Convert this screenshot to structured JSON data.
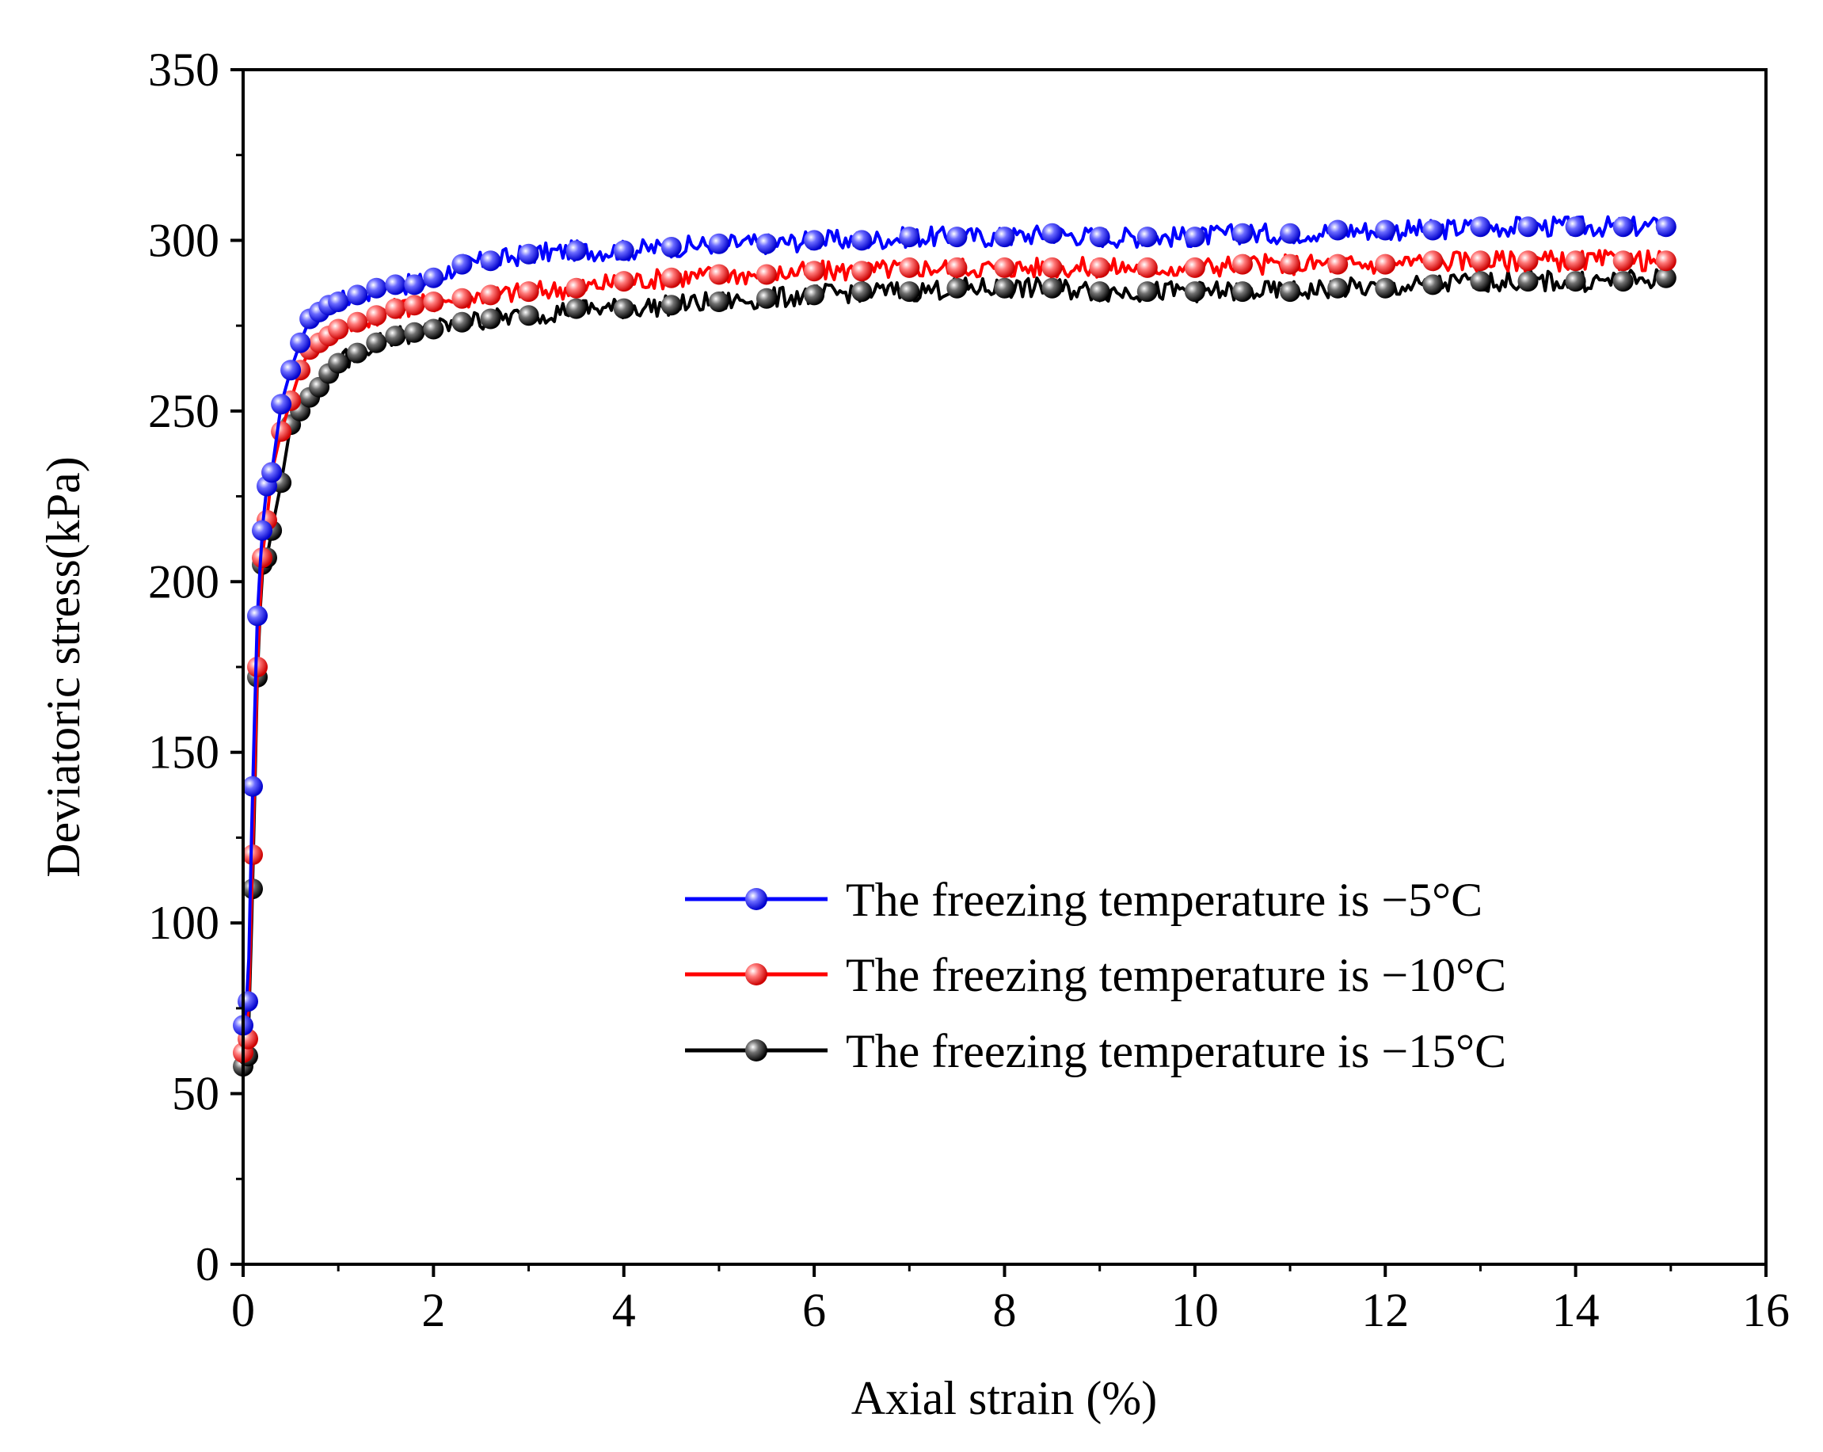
{
  "chart_data": {
    "type": "line",
    "title": "",
    "xlabel": "Axial strain (%)",
    "ylabel": "Deviatoric stress(kPa)",
    "xlim": [
      0,
      16
    ],
    "ylim": [
      0,
      350
    ],
    "xticks": [
      "0",
      "2",
      "4",
      "6",
      "8",
      "10",
      "12",
      "14",
      "16"
    ],
    "yticks": [
      "0",
      "50",
      "100",
      "150",
      "200",
      "250",
      "300",
      "350"
    ],
    "legend_position": "bottom-right",
    "series": [
      {
        "name": "The freezing temperature is −5°C",
        "color": "#0000ff",
        "x": [
          0.0,
          0.05,
          0.1,
          0.15,
          0.2,
          0.25,
          0.3,
          0.4,
          0.5,
          0.6,
          0.7,
          0.8,
          0.9,
          1.0,
          1.2,
          1.4,
          1.6,
          1.8,
          2.0,
          2.3,
          2.6,
          3.0,
          3.5,
          4.0,
          4.5,
          5.0,
          5.5,
          6.0,
          6.5,
          7.0,
          7.5,
          8.0,
          8.5,
          9.0,
          9.5,
          10.0,
          10.5,
          11.0,
          11.5,
          12.0,
          12.5,
          13.0,
          13.5,
          14.0,
          14.5,
          14.95
        ],
        "y": [
          70,
          77,
          140,
          190,
          215,
          228,
          232,
          252,
          262,
          270,
          277,
          279,
          281,
          282,
          284,
          286,
          287,
          287,
          289,
          293,
          294,
          296,
          297,
          297,
          298,
          299,
          299,
          300,
          300,
          301,
          301,
          301,
          302,
          301,
          301,
          301,
          302,
          302,
          303,
          303,
          303,
          304,
          304,
          304,
          304,
          304
        ]
      },
      {
        "name": "The freezing temperature is −10°C",
        "color": "#ff0000",
        "x": [
          0.0,
          0.05,
          0.1,
          0.15,
          0.2,
          0.25,
          0.3,
          0.4,
          0.5,
          0.6,
          0.7,
          0.8,
          0.9,
          1.0,
          1.2,
          1.4,
          1.6,
          1.8,
          2.0,
          2.3,
          2.6,
          3.0,
          3.5,
          4.0,
          4.5,
          5.0,
          5.5,
          6.0,
          6.5,
          7.0,
          7.5,
          8.0,
          8.5,
          9.0,
          9.5,
          10.0,
          10.5,
          11.0,
          11.5,
          12.0,
          12.5,
          13.0,
          13.5,
          14.0,
          14.5,
          14.95
        ],
        "y": [
          62,
          66,
          120,
          175,
          207,
          218,
          232,
          244,
          253,
          262,
          268,
          270,
          272,
          274,
          276,
          278,
          280,
          281,
          282,
          283,
          284,
          285,
          286,
          288,
          289,
          290,
          290,
          291,
          291,
          292,
          292,
          292,
          292,
          292,
          292,
          292,
          293,
          293,
          293,
          293,
          294,
          294,
          294,
          294,
          294,
          294
        ]
      },
      {
        "name": "The freezing temperature is −15°C",
        "color": "#000000",
        "x": [
          0.0,
          0.05,
          0.1,
          0.15,
          0.2,
          0.25,
          0.3,
          0.4,
          0.5,
          0.6,
          0.7,
          0.8,
          0.9,
          1.0,
          1.2,
          1.4,
          1.6,
          1.8,
          2.0,
          2.3,
          2.6,
          3.0,
          3.5,
          4.0,
          4.5,
          5.0,
          5.5,
          6.0,
          6.5,
          7.0,
          7.5,
          8.0,
          8.5,
          9.0,
          9.5,
          10.0,
          10.5,
          11.0,
          11.5,
          12.0,
          12.5,
          13.0,
          13.5,
          14.0,
          14.5,
          14.95
        ],
        "y": [
          58,
          61,
          110,
          172,
          205,
          207,
          215,
          229,
          246,
          250,
          254,
          257,
          261,
          264,
          267,
          270,
          272,
          273,
          274,
          276,
          277,
          278,
          280,
          280,
          281,
          282,
          283,
          284,
          285,
          285,
          286,
          286,
          286,
          285,
          285,
          285,
          285,
          285,
          286,
          286,
          287,
          288,
          288,
          288,
          288,
          289
        ]
      }
    ]
  }
}
